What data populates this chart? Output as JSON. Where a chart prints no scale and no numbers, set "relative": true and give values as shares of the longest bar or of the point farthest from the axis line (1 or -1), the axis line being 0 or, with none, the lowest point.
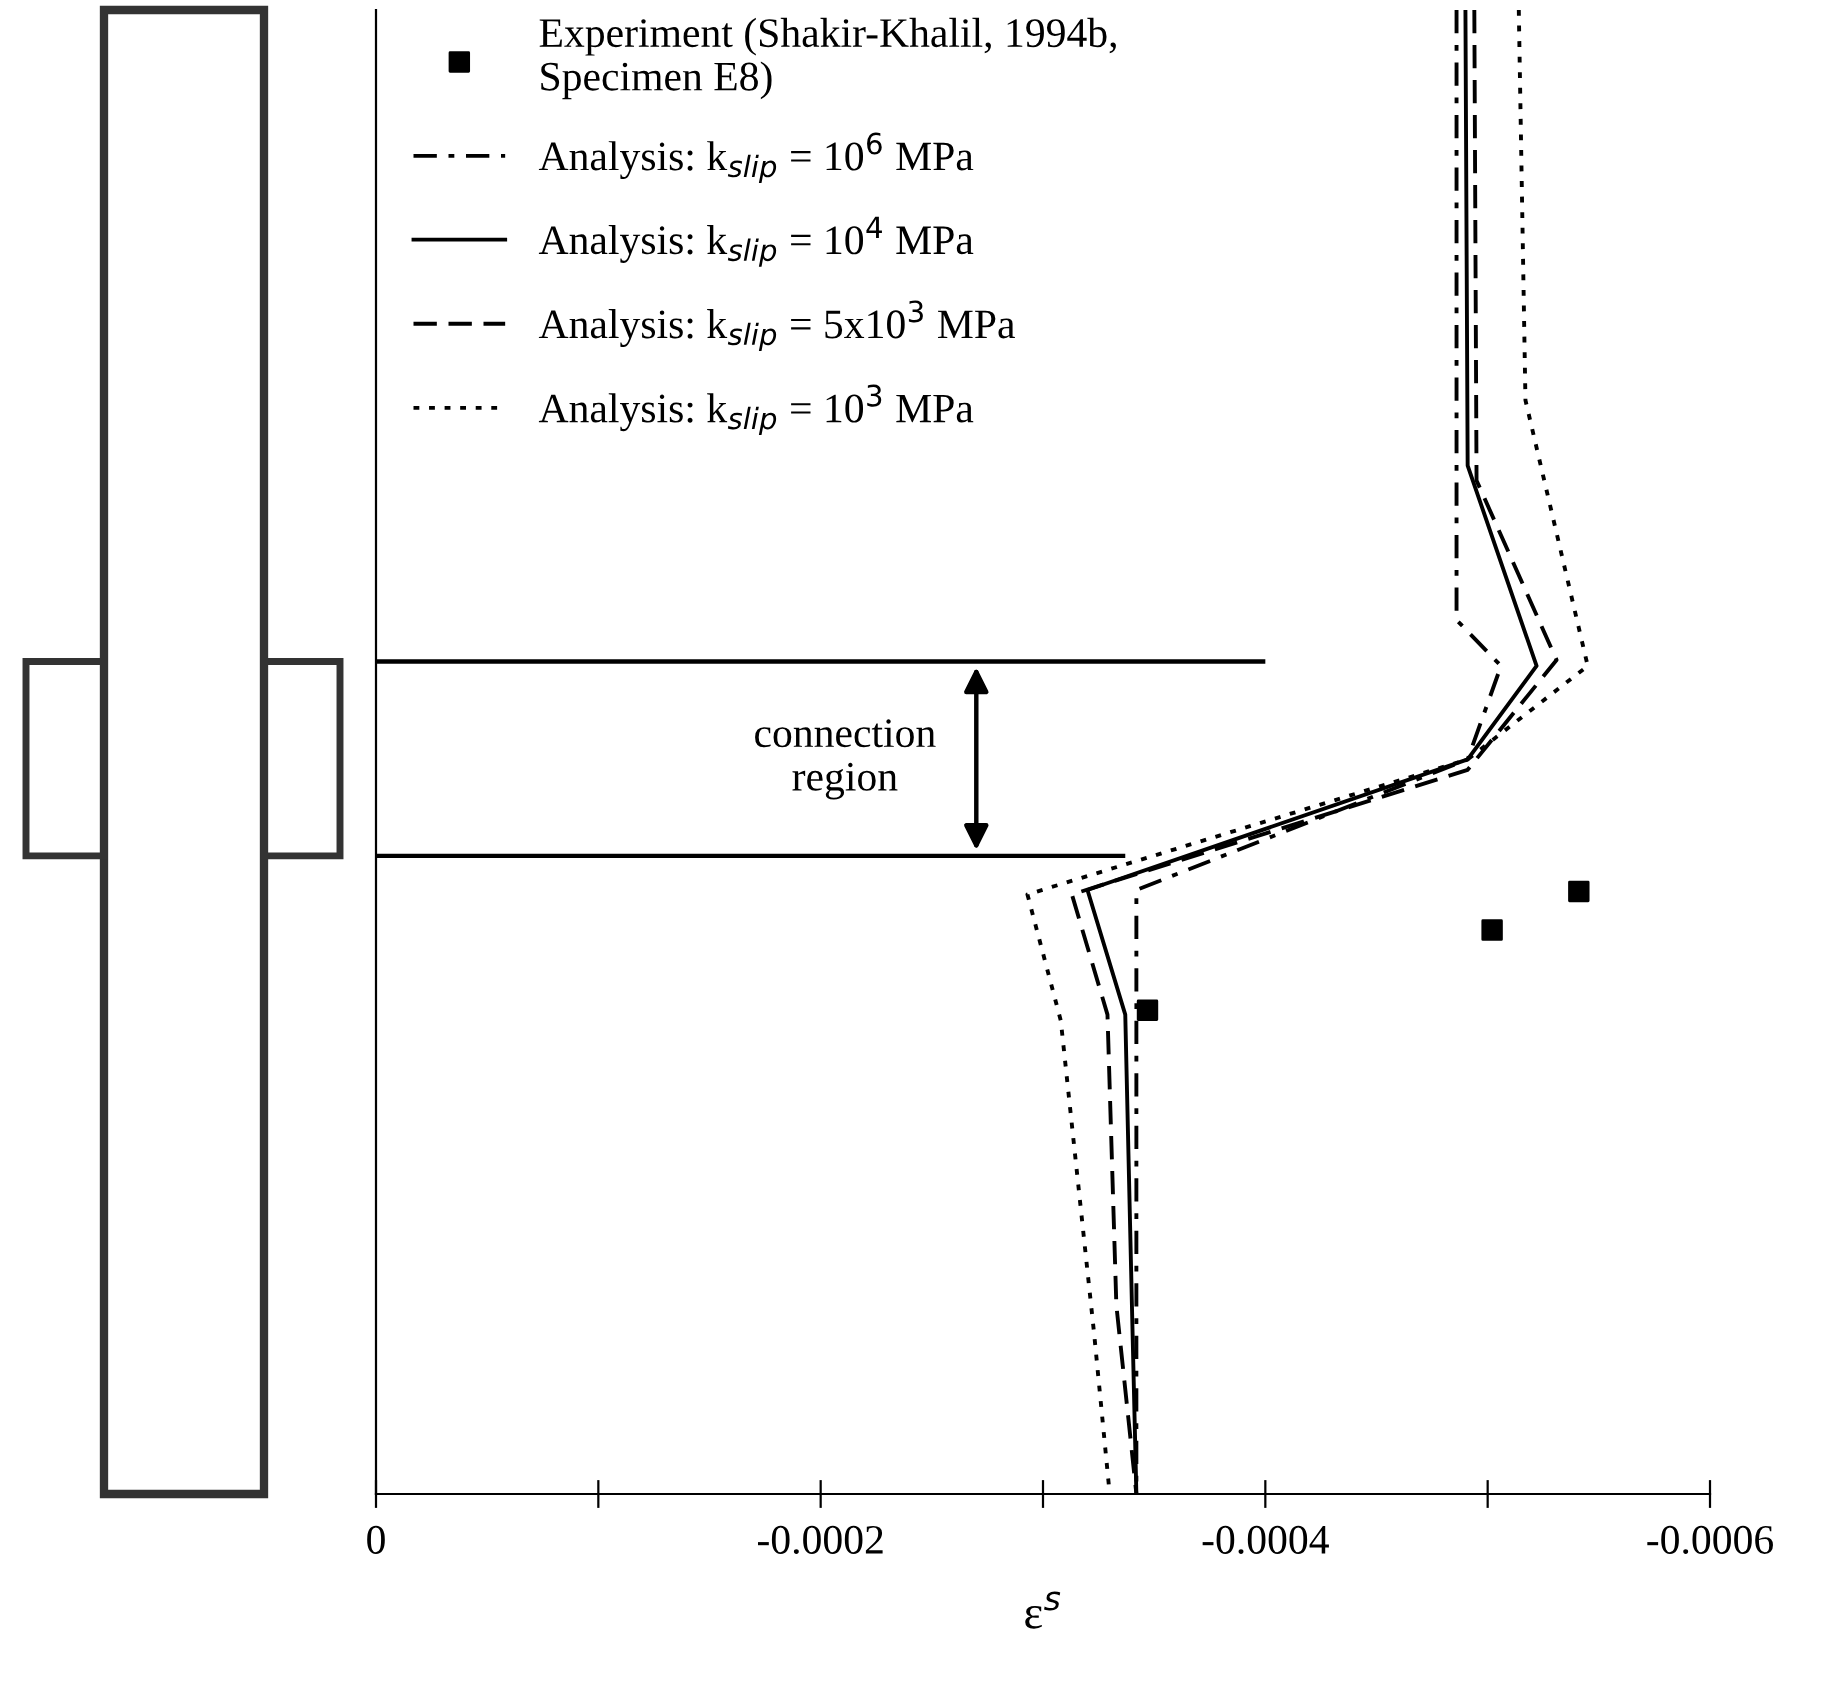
{
  "chart_data": {
    "type": "line",
    "relative": true,
    "xlabel": "ε$^{s}$",
    "xlim": [
      0,
      -0.0006
    ],
    "xticks": [
      0,
      {
        "value": -0.0001,
        "label": null
      },
      -0.0002,
      {
        "value": -0.0003,
        "label": null
      },
      -0.0004,
      {
        "value": -0.0005,
        "label": null
      },
      -0.0006
    ],
    "legend": "top left",
    "grid": false,
    "ref_lines": [
      {
        "axis": "y",
        "value": 0.561,
        "color": "#000000",
        "line_style": "solid"
      },
      {
        "axis": "y",
        "value": 0.43,
        "color": "#000000",
        "line_style": "solid"
      }
    ],
    "annotations": [
      "connection region"
    ],
    "series": [
      {
        "name": "Experiment (Shakir-Khalil, 1994b,\nSpecimen E8)",
        "type": "scatter",
        "marker": "square",
        "color": "#000000",
        "x": [
          -0.000347,
          -0.000502,
          -0.000541
        ],
        "values": [
          0.326,
          0.38,
          0.406
        ]
      },
      {
        "name": "Analysis: k$_{slip}$ = 10$^{6}$ MPa",
        "line_style": "dashdot",
        "color": "#000000",
        "x": [
          -0.000486,
          -0.000486,
          -0.000506,
          -0.000491,
          -0.000342,
          -0.000342
        ],
        "values": [
          1.0,
          0.589,
          0.558,
          0.495,
          0.407,
          0.0
        ]
      },
      {
        "name": "Analysis: k$_{slip}$ = 10$^{4}$ MPa",
        "line_style": "solid",
        "color": "#000000",
        "x": [
          -0.00049,
          -0.000491,
          -0.000522,
          -0.000491,
          -0.00032,
          -0.000337,
          -0.00034,
          -0.000342
        ],
        "values": [
          1.0,
          0.693,
          0.558,
          0.495,
          0.407,
          0.323,
          0.127,
          0.0
        ]
      },
      {
        "name": "Analysis: k$_{slip}$ = 5x10$^{3}$ MPa",
        "line_style": "dashed",
        "color": "#000000",
        "x": [
          -0.000494,
          -0.000495,
          -0.000531,
          -0.000491,
          -0.000313,
          -0.000329,
          -0.000333,
          -0.000342
        ],
        "values": [
          1.0,
          0.683,
          0.562,
          0.488,
          0.404,
          0.323,
          0.127,
          0.0
        ]
      },
      {
        "name": "Analysis: k$_{slip}$ = 10$^{3}$ MPa",
        "line_style": "dotted",
        "color": "#000000",
        "x": [
          -0.000514,
          -0.000517,
          -0.000545,
          -0.000491,
          -0.000293,
          -0.000308,
          -0.000323,
          -0.00033
        ],
        "values": [
          1.0,
          0.737,
          0.558,
          0.495,
          0.404,
          0.319,
          0.108,
          0.0
        ]
      }
    ]
  }
}
